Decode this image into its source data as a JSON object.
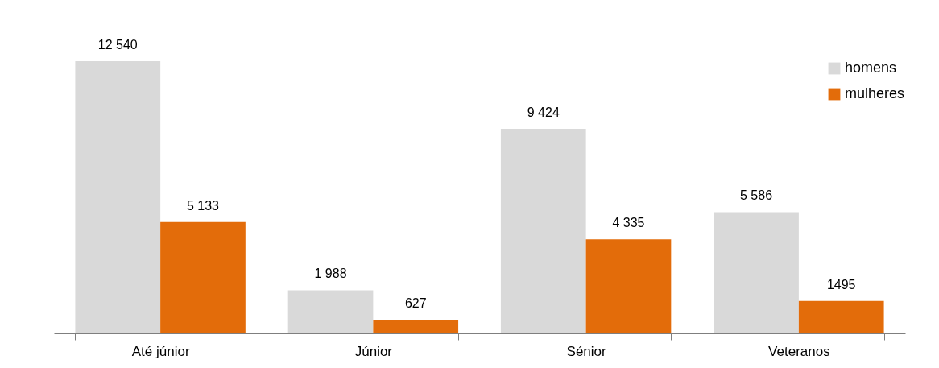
{
  "chart_data": {
    "type": "bar",
    "categories": [
      "Até júnior",
      "Júnior",
      "Sénior",
      "Veteranos"
    ],
    "series": [
      {
        "name": "homens",
        "color": "#d9d9d9",
        "values": [
          12540,
          1988,
          9424,
          5586
        ],
        "value_labels": [
          "12 540",
          "1 988",
          "9 424",
          "5 586"
        ]
      },
      {
        "name": "mulheres",
        "color": "#e36c0a",
        "values": [
          5133,
          627,
          4335,
          1495
        ],
        "value_labels": [
          "5 133",
          "627",
          "4 335",
          "1495"
        ]
      }
    ],
    "legend": "top right",
    "grid": false
  }
}
